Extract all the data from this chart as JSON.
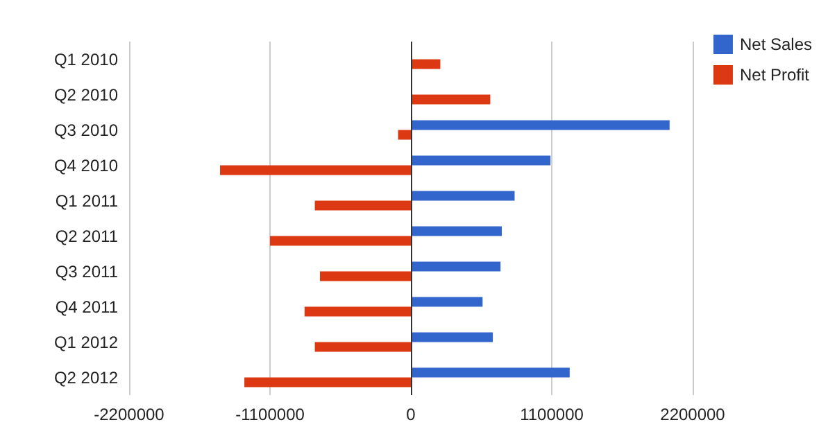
{
  "chart_data": {
    "type": "bar",
    "orientation": "horizontal",
    "categories": [
      "Q1 2010",
      "Q2 2010",
      "Q3 2010",
      "Q4 2010",
      "Q1 2011",
      "Q2 2011",
      "Q3 2011",
      "Q4 2011",
      "Q1 2012",
      "Q2 2012"
    ],
    "series": [
      {
        "name": "Net Sales",
        "color": "#3366cc",
        "values": [
          null,
          null,
          2020000,
          1090000,
          810000,
          710000,
          700000,
          560000,
          640000,
          1240000
        ]
      },
      {
        "name": "Net Profit",
        "color": "#dc3912",
        "values": [
          230000,
          620000,
          -100000,
          -1490000,
          -750000,
          -1100000,
          -710000,
          -830000,
          -750000,
          -1300000
        ]
      }
    ],
    "xlim": [
      -2200000,
      2200000
    ],
    "xticks": [
      -2200000,
      -1100000,
      0,
      1100000,
      2200000
    ],
    "grid": "x",
    "legend": "top right"
  }
}
